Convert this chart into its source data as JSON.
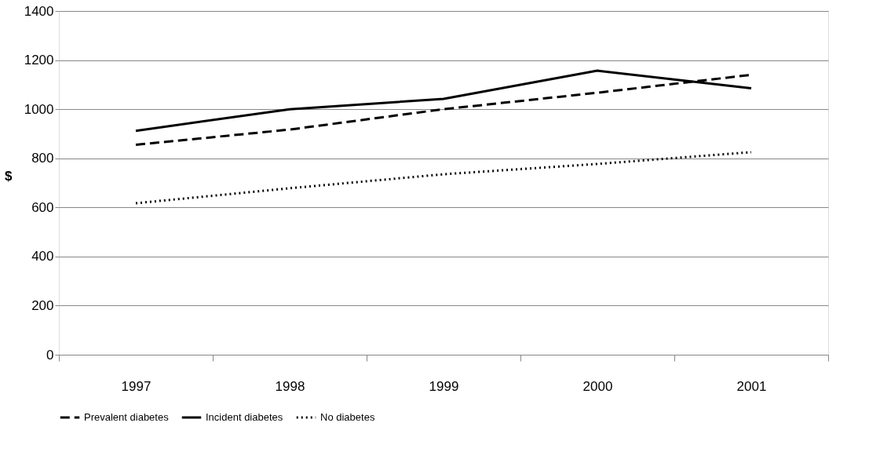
{
  "chart_data": {
    "type": "line",
    "ylabel": "$",
    "categories": [
      "1997",
      "1998",
      "1999",
      "2000",
      "2001"
    ],
    "series": [
      {
        "name": "Prevalent diabetes",
        "color": "#000000",
        "line_style": "dashed",
        "values": [
          855,
          917,
          1000,
          1067,
          1140
        ]
      },
      {
        "name": "Incident diabetes",
        "color": "#000000",
        "line_style": "solid",
        "values": [
          912,
          1000,
          1042,
          1157,
          1085
        ]
      },
      {
        "name": "No diabetes",
        "color": "#000000",
        "line_style": "dotted",
        "values": [
          617,
          678,
          735,
          777,
          825
        ]
      }
    ],
    "ylim": [
      0,
      1400
    ],
    "yticks": [
      0,
      200,
      400,
      600,
      800,
      1000,
      1200,
      1400
    ],
    "grid": "y",
    "legend": "bottom",
    "marker": "none"
  }
}
